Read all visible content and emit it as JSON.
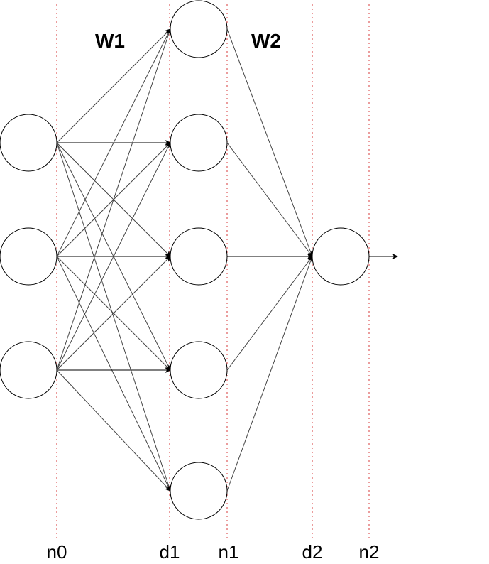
{
  "labels": {
    "weights": [
      "W1",
      "W2"
    ],
    "axis": [
      "n0",
      "d1",
      "n1",
      "d2",
      "n2"
    ]
  },
  "network": {
    "layers": [
      3,
      5,
      1
    ],
    "connectivity": "fully-connected",
    "output_arrow": true
  },
  "colors": {
    "guide_lines": "#e06666",
    "edges": "#444444",
    "nodes": "#000000"
  }
}
